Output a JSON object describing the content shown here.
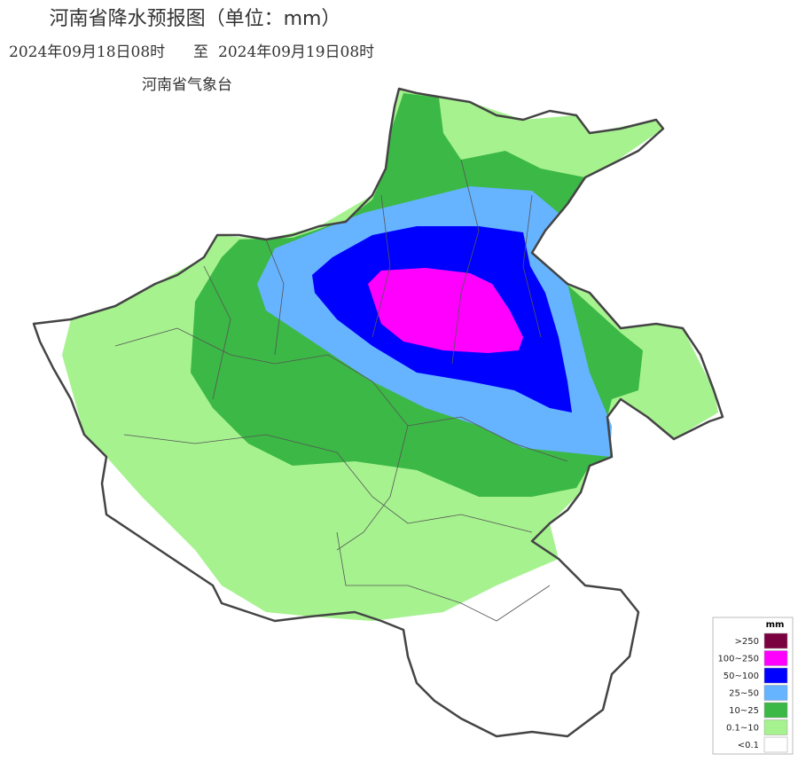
{
  "header": {
    "title": "河南省降水预报图（单位：mm）",
    "start": "2024年09月18日08时",
    "to": "至",
    "end": "2024年09月19日08时",
    "agency": "河南省气象台"
  },
  "legend": {
    "unit": "mm",
    "items": [
      {
        "label": ">250",
        "color": "#7a0040"
      },
      {
        "label": "100~250",
        "color": "#ff00ff"
      },
      {
        "label": "50~100",
        "color": "#0000ff"
      },
      {
        "label": "25~50",
        "color": "#66b3ff"
      },
      {
        "label": "10~25",
        "color": "#3cb846"
      },
      {
        "label": "0.1~10",
        "color": "#a6f28f"
      },
      {
        "label": "<0.1",
        "color": "#ffffff"
      }
    ]
  }
}
